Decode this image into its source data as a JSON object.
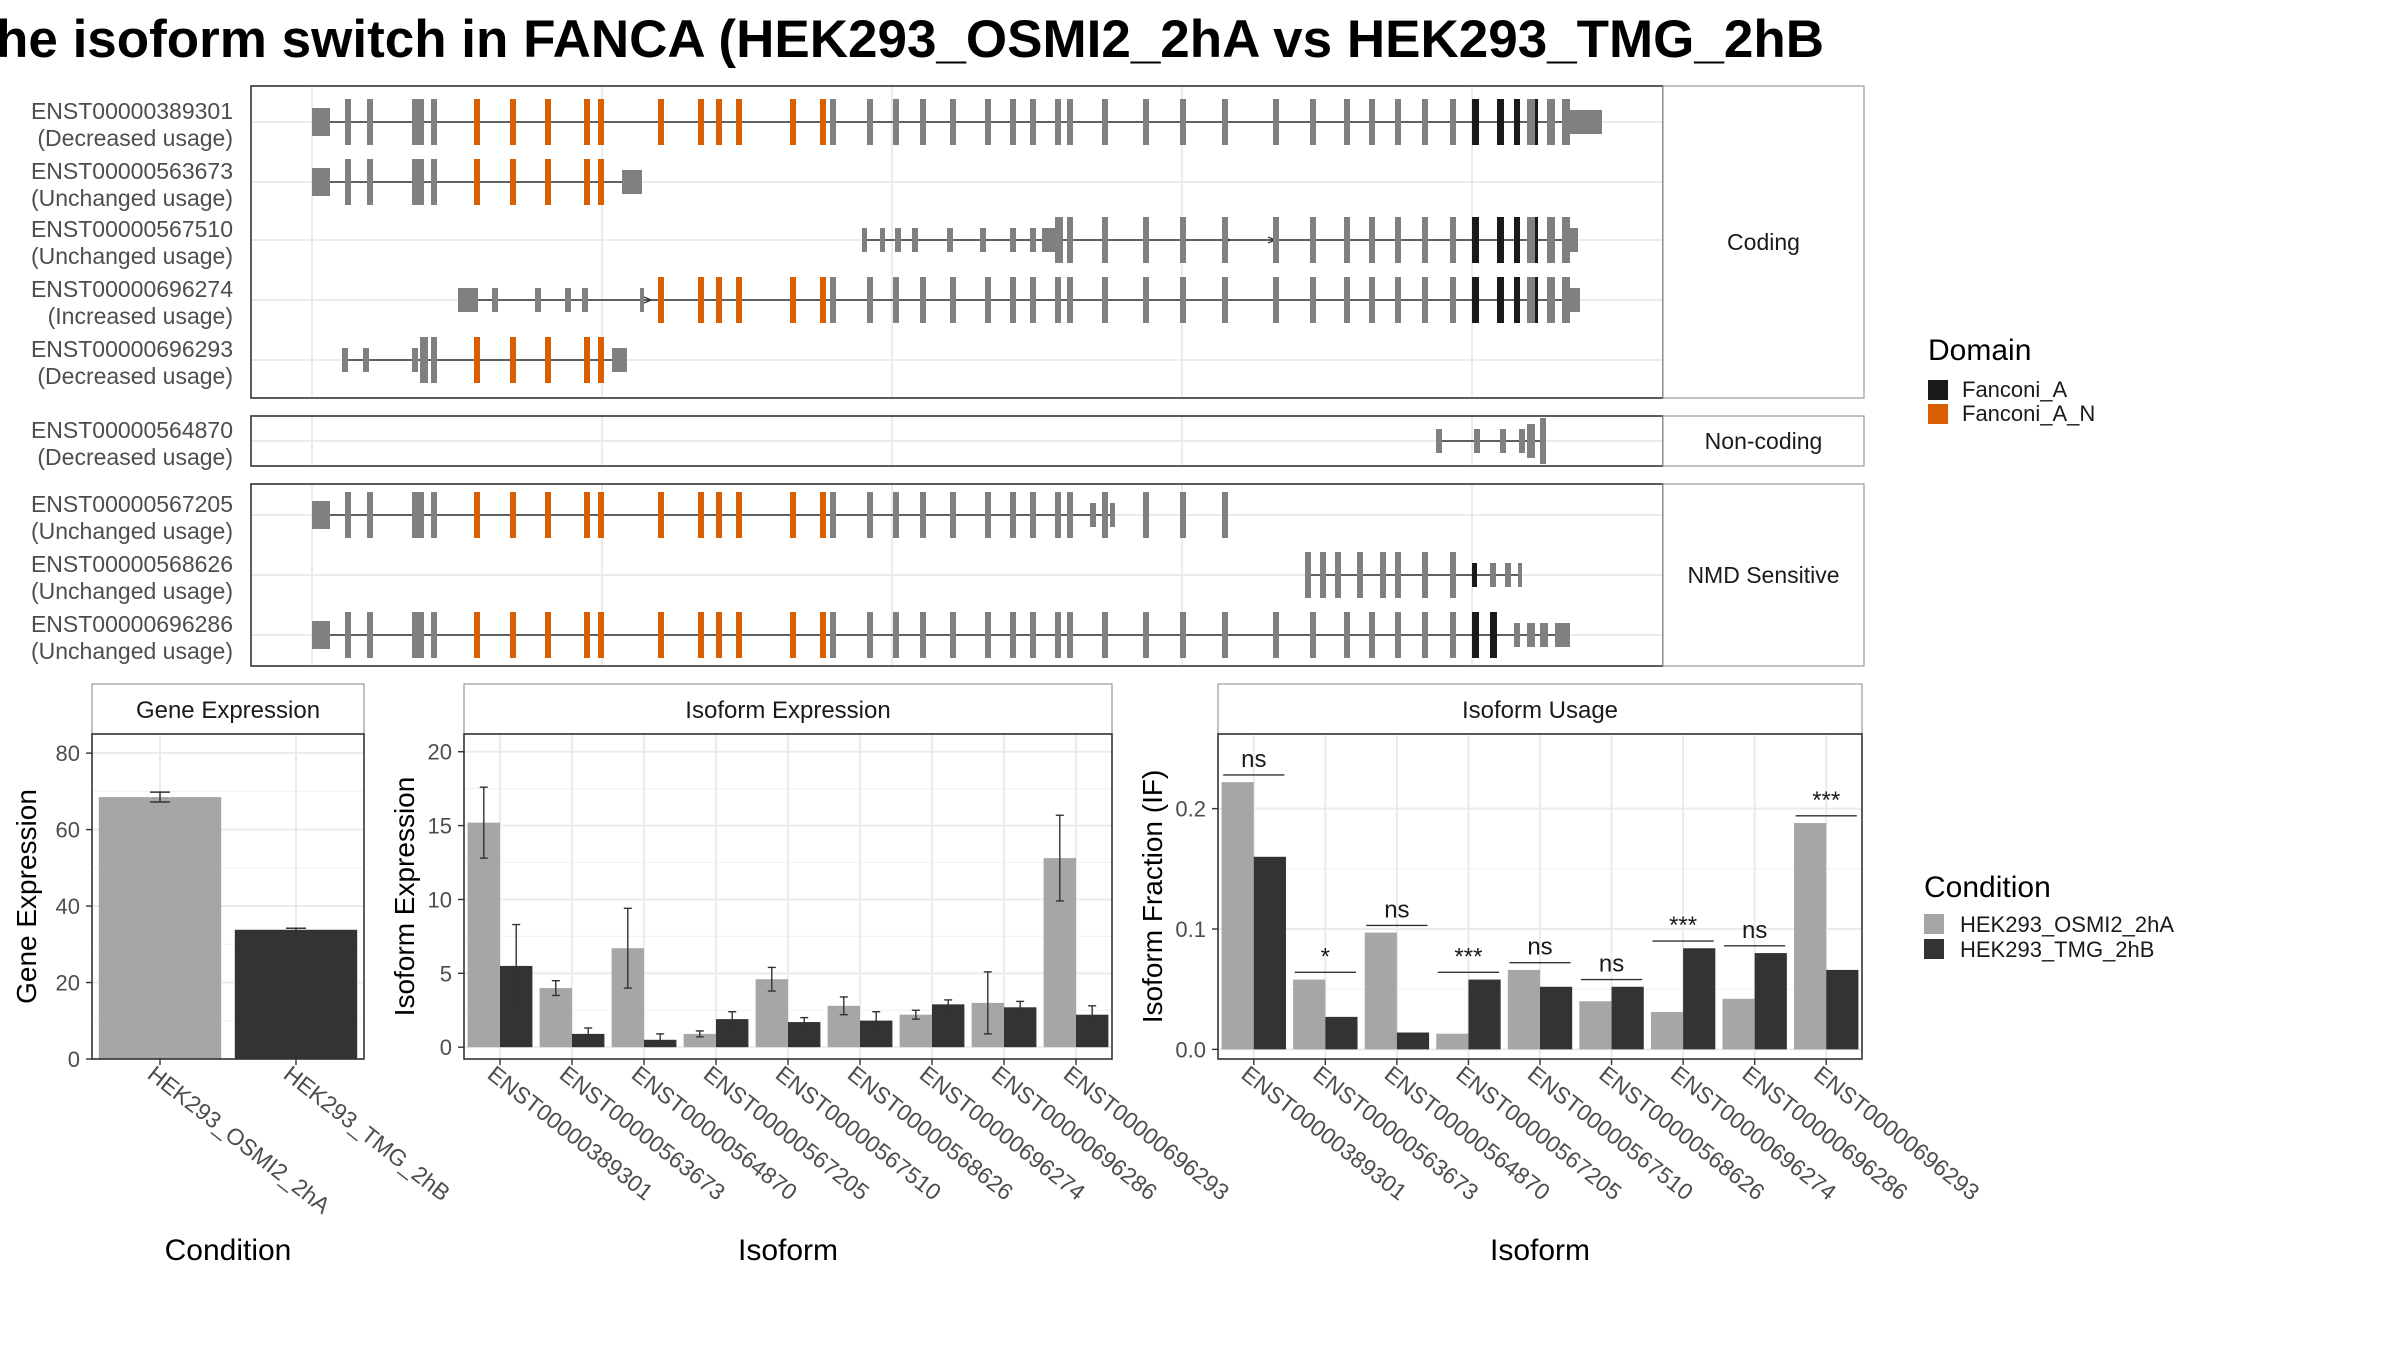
{
  "title": "he isoform switch in FANCA (HEK293_OSMI2_2hA vs HEK293_TMG_2hB",
  "colors": {
    "fanconi_a": "#1a1a1a",
    "fanconi_a_n": "#d95f02",
    "exon": "#808080",
    "cond_a": "#a6a6a6",
    "cond_b": "#333333",
    "grid": "#ebebeb"
  },
  "domain_legend": {
    "title": "Domain",
    "items": [
      {
        "label": "Fanconi_A",
        "color": "#1a1a1a"
      },
      {
        "label": "Fanconi_A_N",
        "color": "#d95f02"
      }
    ]
  },
  "condition_legend": {
    "title": "Condition",
    "items": [
      {
        "label": "HEK293_OSMI2_2hA",
        "color": "#a6a6a6"
      },
      {
        "label": "HEK293_TMG_2hB",
        "color": "#333333"
      }
    ]
  },
  "structure": {
    "groups": [
      {
        "label": "Coding",
        "transcripts": [
          {
            "id": "ENST00000389301",
            "usage": "(Decreased usage)"
          },
          {
            "id": "ENST00000563673",
            "usage": "(Unchanged usage)"
          },
          {
            "id": "ENST00000567510",
            "usage": "(Unchanged usage)"
          },
          {
            "id": "ENST00000696274",
            "usage": "(Increased usage)"
          },
          {
            "id": "ENST00000696293",
            "usage": "(Decreased usage)"
          }
        ]
      },
      {
        "label": "Non-coding",
        "transcripts": [
          {
            "id": "ENST00000564870",
            "usage": "(Decreased usage)"
          }
        ]
      },
      {
        "label": "NMD Sensitive",
        "transcripts": [
          {
            "id": "ENST00000567205",
            "usage": "(Unchanged usage)"
          },
          {
            "id": "ENST00000568626",
            "usage": "(Unchanged usage)"
          },
          {
            "id": "ENST00000696286",
            "usage": "(Unchanged usage)"
          }
        ]
      }
    ]
  },
  "chart_data": [
    {
      "type": "bar",
      "panel": "Gene Expression",
      "xlabel": "Condition",
      "ylabel": "Gene Expression",
      "categories": [
        "HEK293_OSMI2_2hA",
        "HEK293_TMG_2hB"
      ],
      "values": [
        68.5,
        33.8
      ],
      "errors": [
        1.3,
        0.4
      ],
      "ylim": [
        0,
        85
      ],
      "yticks": [
        0,
        20,
        40,
        60,
        80
      ]
    },
    {
      "type": "bar",
      "panel": "Isoform Expression",
      "xlabel": "Isoform",
      "ylabel": "Isoform Expression",
      "categories": [
        "ENST00000389301",
        "ENST00000563673",
        "ENST00000564870",
        "ENST00000567205",
        "ENST00000567510",
        "ENST00000568626",
        "ENST00000696274",
        "ENST00000696286",
        "ENST00000696293"
      ],
      "series": [
        {
          "name": "HEK293_OSMI2_2hA",
          "values": [
            15.2,
            4.0,
            6.7,
            0.9,
            4.6,
            2.8,
            2.2,
            3.0,
            12.8
          ],
          "errors": [
            2.4,
            0.5,
            2.7,
            0.2,
            0.8,
            0.6,
            0.3,
            2.1,
            2.9
          ]
        },
        {
          "name": "HEK293_TMG_2hB",
          "values": [
            5.5,
            0.9,
            0.5,
            1.9,
            1.7,
            1.8,
            2.9,
            2.7,
            2.2
          ],
          "errors": [
            2.8,
            0.4,
            0.4,
            0.5,
            0.3,
            0.6,
            0.3,
            0.4,
            0.6
          ]
        }
      ],
      "ylim": [
        -0.8,
        21.2
      ],
      "yticks": [
        0,
        5,
        10,
        15,
        20
      ]
    },
    {
      "type": "bar",
      "panel": "Isoform Usage",
      "xlabel": "Isoform",
      "ylabel": "Isoform Fraction (IF)",
      "categories": [
        "ENST00000389301",
        "ENST00000563673",
        "ENST00000564870",
        "ENST00000567205",
        "ENST00000567510",
        "ENST00000568626",
        "ENST00000696274",
        "ENST00000696286",
        "ENST00000696293"
      ],
      "series": [
        {
          "name": "HEK293_OSMI2_2hA",
          "values": [
            0.222,
            0.058,
            0.097,
            0.013,
            0.066,
            0.04,
            0.031,
            0.042,
            0.188
          ]
        },
        {
          "name": "HEK293_TMG_2hB",
          "values": [
            0.16,
            0.027,
            0.014,
            0.058,
            0.052,
            0.052,
            0.084,
            0.08,
            0.066
          ]
        }
      ],
      "significance": [
        "ns",
        "*",
        "ns",
        "***",
        "ns",
        "ns",
        "***",
        "ns",
        "***"
      ],
      "ylim": [
        -0.008,
        0.262
      ],
      "yticks": [
        0.0,
        0.1,
        0.2
      ],
      "ytick_labels": [
        "0.0",
        "0.1",
        "0.2"
      ]
    }
  ]
}
